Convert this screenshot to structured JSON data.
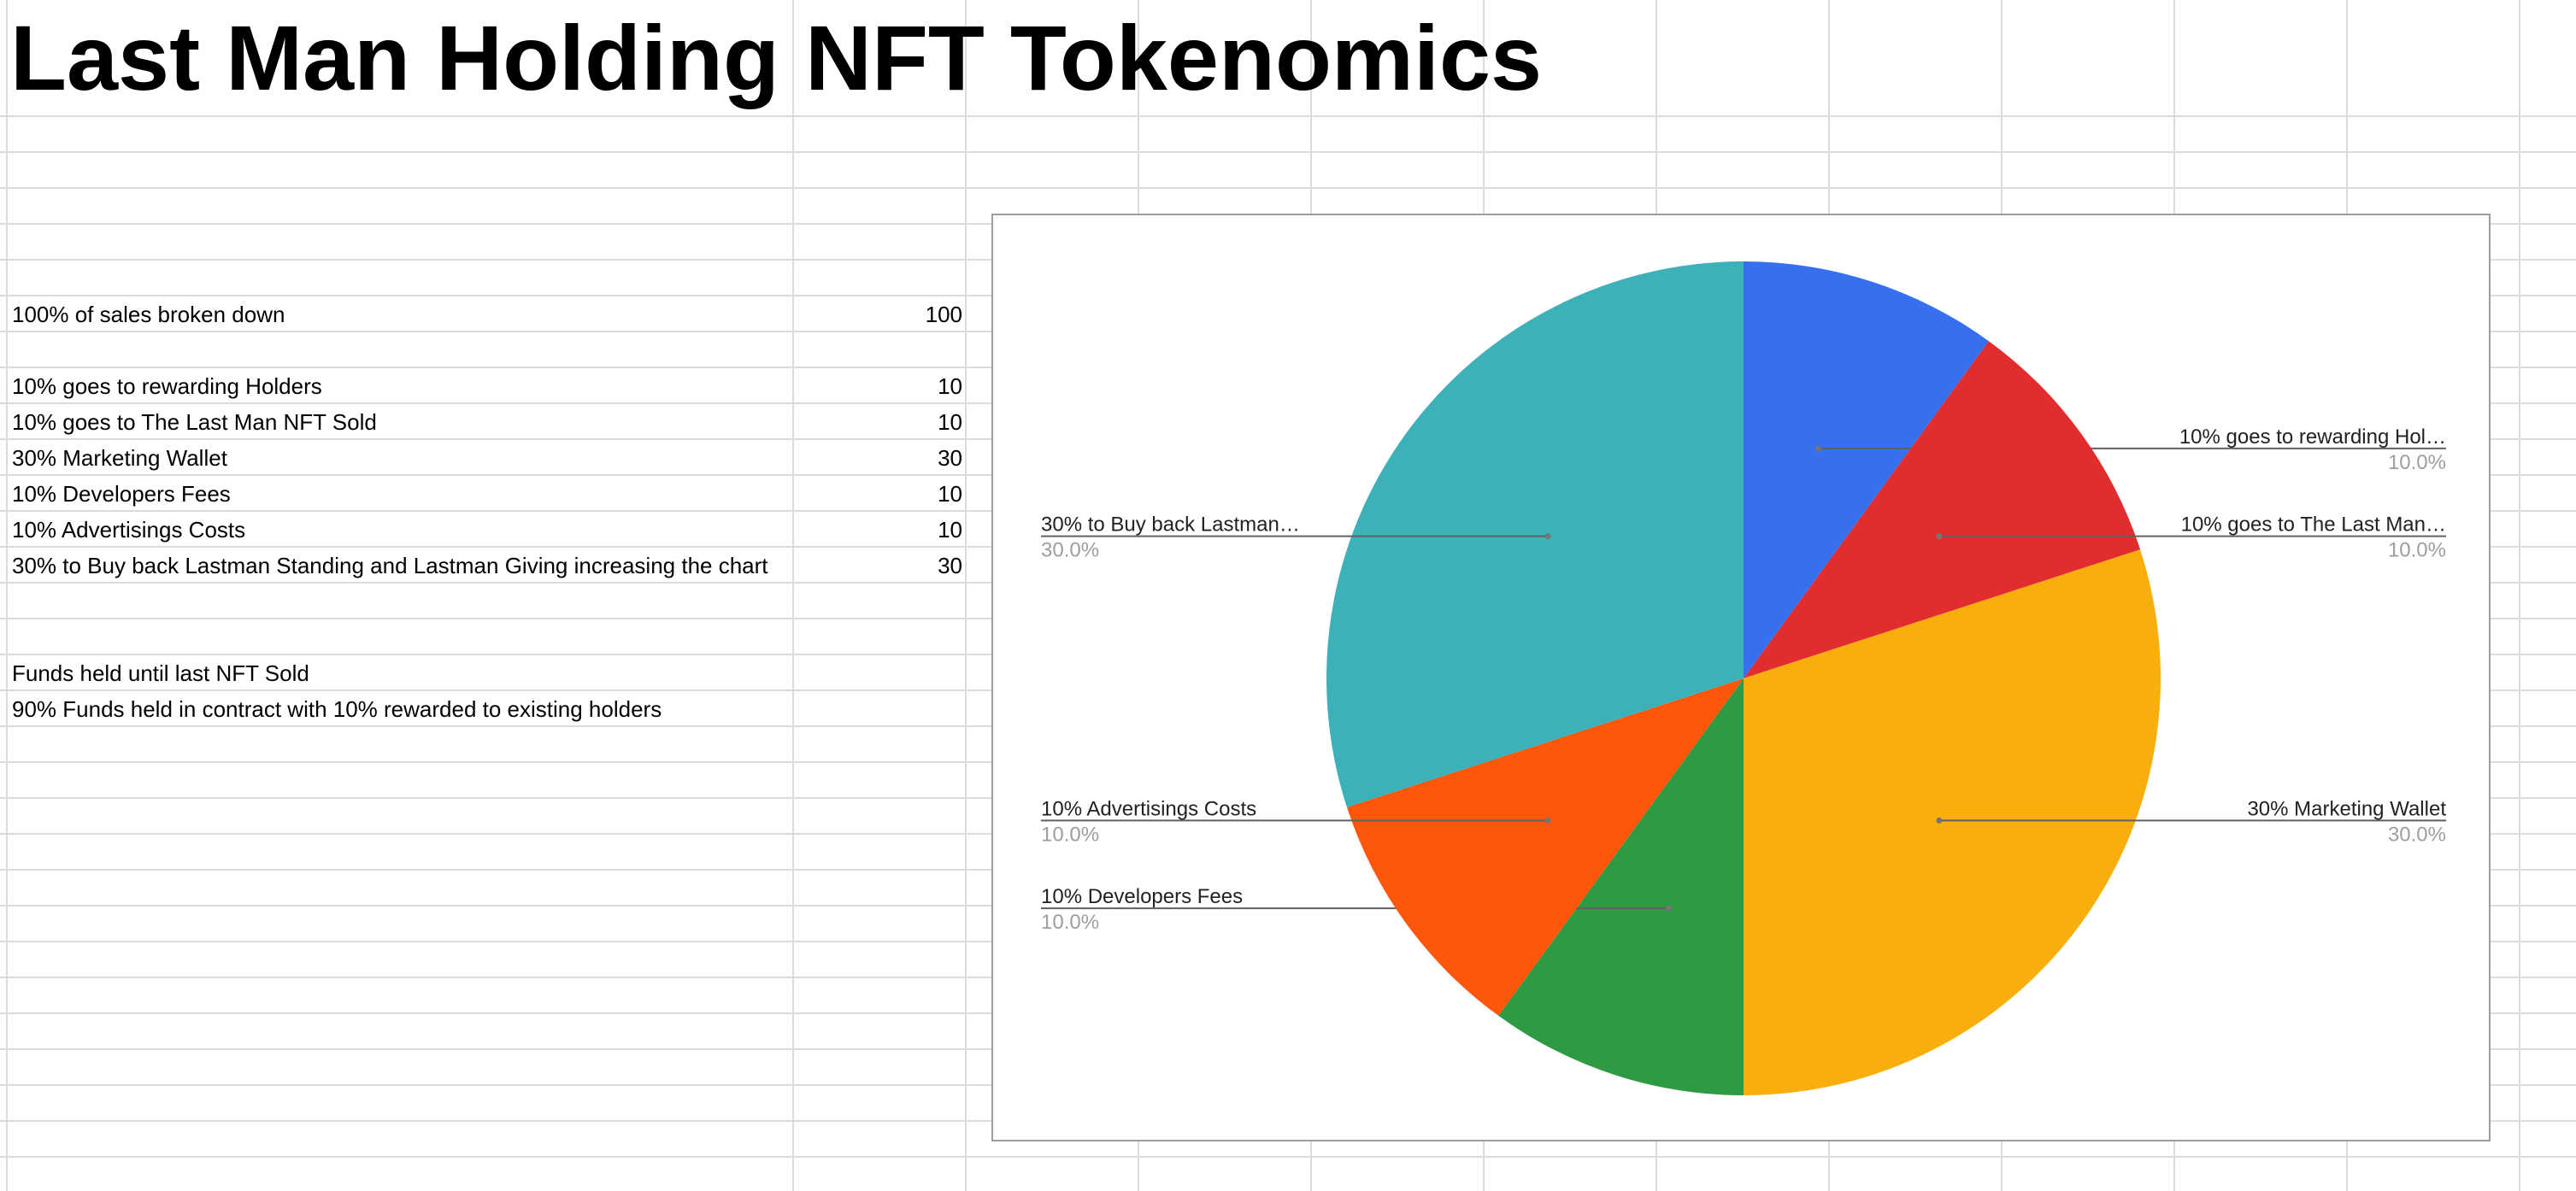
{
  "sheet": {
    "title": "Last Man Holding NFT Tokenomics",
    "rows": [
      {
        "label": "100% of sales broken down",
        "value": "100"
      },
      {
        "label": "10% goes to rewarding Holders",
        "value": "10"
      },
      {
        "label": "10% goes to The Last Man NFT Sold",
        "value": "10"
      },
      {
        "label": "30% Marketing Wallet",
        "value": "30"
      },
      {
        "label": "10% Developers Fees",
        "value": "10"
      },
      {
        "label": "10% Advertisings Costs",
        "value": "10"
      },
      {
        "label": "30% to Buy back Lastman Standing and Lastman Giving increasing the chart",
        "value": "30"
      }
    ],
    "notes": [
      "Funds held until last NFT Sold",
      "90% Funds held in contract with 10% rewarded to existing holders"
    ]
  },
  "chart_data": {
    "type": "pie",
    "title": "",
    "slices": [
      {
        "label": "10% goes to rewarding Holders",
        "display_label": "10% goes to rewarding Hol…",
        "value": 10,
        "percent_label": "10.0%",
        "color": "#3670EE"
      },
      {
        "label": "10% goes to The Last Man NFT Sold",
        "display_label": "10% goes to The Last Man…",
        "value": 10,
        "percent_label": "10.0%",
        "color": "#E12D2D"
      },
      {
        "label": "30% Marketing Wallet",
        "display_label": "30% Marketing Wallet",
        "value": 30,
        "percent_label": "30.0%",
        "color": "#F8AE0D"
      },
      {
        "label": "10% Developers Fees",
        "display_label": "10% Developers Fees",
        "value": 10,
        "percent_label": "10.0%",
        "color": "#2F9A44"
      },
      {
        "label": "10% Advertisings Costs",
        "display_label": "10% Advertisings Costs",
        "value": 10,
        "percent_label": "10.0%",
        "color": "#FE570B"
      },
      {
        "label": "30% to Buy back Lastman Standing and Lastman Giving increasing the chart",
        "display_label": "30% to Buy back Lastman…",
        "value": 30,
        "percent_label": "30.0%",
        "color": "#3CB1BA"
      }
    ],
    "start_angle": "12 o'clock",
    "direction": "clockwise",
    "labels": "outside with leader lines"
  }
}
